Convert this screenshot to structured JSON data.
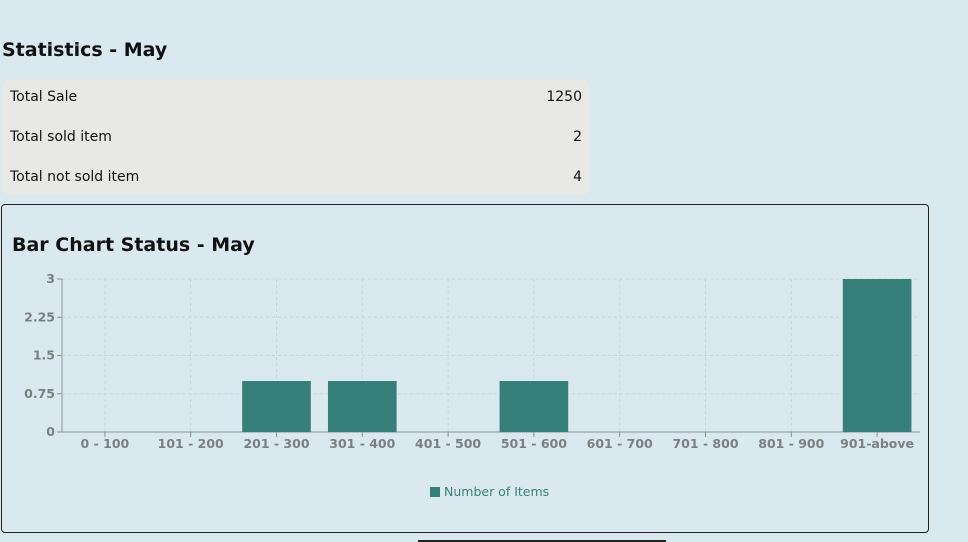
{
  "statistics": {
    "title": "Statistics - May",
    "rows": [
      {
        "label": "Total Sale",
        "value": "1250"
      },
      {
        "label": "Total sold item",
        "value": "2"
      },
      {
        "label": "Total not sold item",
        "value": "4"
      }
    ]
  },
  "chart_data": {
    "type": "bar",
    "title": "Bar Chart Status - May",
    "categories": [
      "0 - 100",
      "101 - 200",
      "201 - 300",
      "301 - 400",
      "401 - 500",
      "501 - 600",
      "601 - 700",
      "701 - 800",
      "801 - 900",
      "901-above"
    ],
    "series": [
      {
        "name": "Number of Items",
        "values": [
          0,
          0,
          1,
          1,
          0,
          1,
          0,
          0,
          0,
          3
        ],
        "color": "#367f7b"
      }
    ],
    "ylim": [
      0,
      3
    ],
    "yticks": [
      "0",
      "0.75",
      "1.5",
      "2.25",
      "3"
    ],
    "grid": true,
    "legend_position": "bottom-center",
    "xlabel": "",
    "ylabel": ""
  },
  "colors": {
    "background": "#d9e9ef",
    "card": "#e8e9e4",
    "bar": "#367f7b",
    "grid": "#c5d6dc",
    "axis_text": "#7c7f82"
  }
}
